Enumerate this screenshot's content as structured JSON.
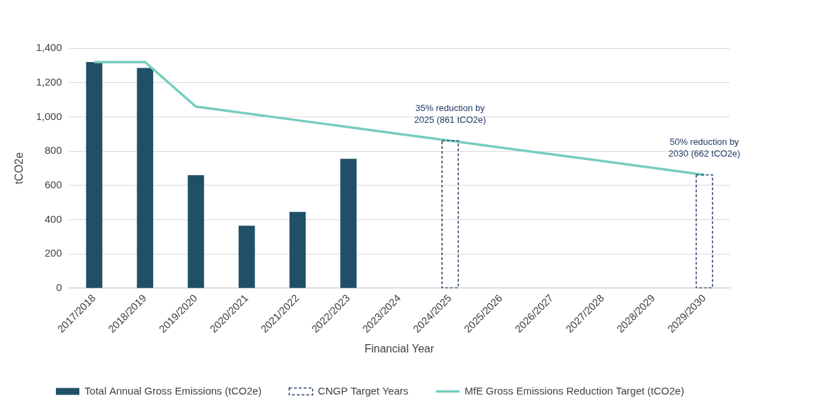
{
  "chart_data": {
    "type": "bar",
    "categories": [
      "2017/2018",
      "2018/2019",
      "2019/2020",
      "2020/2021",
      "2021/2022",
      "2022/2023",
      "2023/2024",
      "2024/2025",
      "2025/2026",
      "2026/2027",
      "2027/2028",
      "2028/2029",
      "2029/2030"
    ],
    "x_label": "Financial Year",
    "y_label": "tCO2e",
    "ylim": [
      0,
      1400
    ],
    "yticks": [
      0,
      200,
      400,
      600,
      800,
      {
        "value": 1000,
        "label": "1,000"
      },
      {
        "value": 1200,
        "label": "1,200"
      },
      {
        "value": 1400,
        "label": "1,400"
      }
    ],
    "grid": true,
    "legend": "bottom",
    "data_labels": false,
    "series": [
      {
        "name": "Total Annual Gross Emissions (tCO2e)",
        "type": "bar",
        "color": "#1f5068",
        "values": [
          1320,
          1285,
          660,
          365,
          445,
          755,
          null,
          null,
          null,
          null,
          null,
          null,
          null
        ]
      },
      {
        "name": "CNGP Target Years",
        "type": "bar",
        "color": "#1f3864",
        "line_style": "dashed",
        "values": [
          null,
          null,
          null,
          null,
          null,
          null,
          null,
          861,
          null,
          null,
          null,
          null,
          662
        ]
      },
      {
        "name": "MfE Gross Emissions Reduction Target (tCO2e)",
        "type": "line",
        "color": "#76cdbf",
        "marker": "none",
        "values": [
          1320,
          1320,
          1060,
          1020,
          980,
          940,
          900,
          861,
          821,
          781,
          742,
          702,
          662
        ]
      }
    ],
    "annotations": [
      {
        "text": [
          "35% reduction by",
          "2025 (861 tCO2e)"
        ],
        "category": "2024/2025"
      },
      {
        "text": [
          "50% reduction by",
          "2030 (662 tCO2e)"
        ],
        "category": "2029/2030"
      }
    ]
  }
}
